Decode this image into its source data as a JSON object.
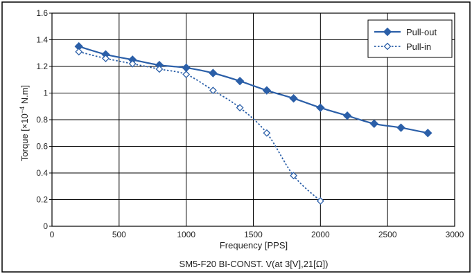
{
  "chart_data": {
    "type": "line",
    "title": "SM5-F20 BI-CONST. V(at 3[V],21[Ω])",
    "xlabel": "Frequency [PPS]",
    "ylabel": "Torque [×10",
    "ylabel_sup": "−4",
    "ylabel_suffix": " N.m]",
    "xlim": [
      0,
      3000
    ],
    "ylim": [
      0,
      1.6
    ],
    "x_ticks": [
      0,
      500,
      1000,
      1500,
      2000,
      2500,
      3000
    ],
    "y_ticks": [
      0,
      0.2,
      0.4,
      0.6,
      0.8,
      1,
      1.2,
      1.4,
      1.6
    ],
    "grid": true,
    "legend_position": "top-right",
    "series": [
      {
        "name": "Pull-out",
        "style": "solid",
        "marker": "filled-diamond",
        "color": "#2b5fa8",
        "x": [
          200,
          400,
          600,
          800,
          1000,
          1200,
          1400,
          1600,
          1800,
          2000,
          2200,
          2400,
          2600,
          2800
        ],
        "y": [
          1.35,
          1.29,
          1.25,
          1.21,
          1.19,
          1.15,
          1.09,
          1.02,
          0.96,
          0.89,
          0.83,
          0.77,
          0.74,
          0.7
        ]
      },
      {
        "name": "Pull-in",
        "style": "dotted",
        "marker": "open-diamond",
        "color": "#2b5fa8",
        "x": [
          200,
          400,
          600,
          800,
          1000,
          1200,
          1400,
          1600,
          1800,
          2000
        ],
        "y": [
          1.31,
          1.26,
          1.22,
          1.18,
          1.14,
          1.02,
          0.89,
          0.7,
          0.38,
          0.19
        ]
      }
    ]
  }
}
